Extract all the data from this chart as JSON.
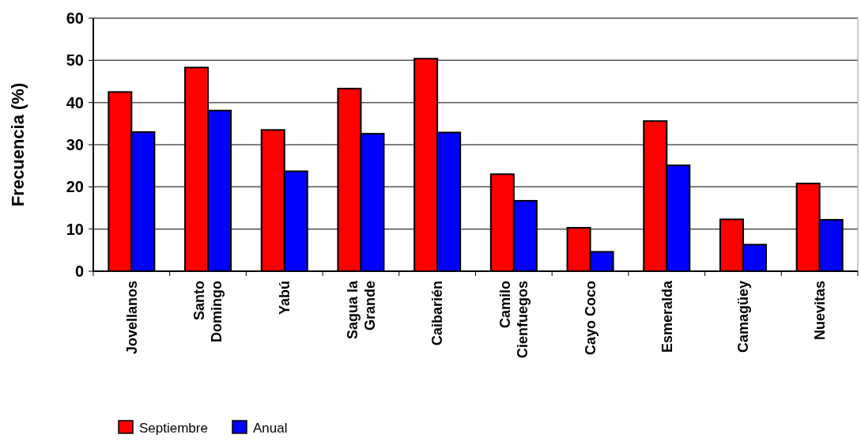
{
  "chart_data": {
    "type": "bar",
    "ylabel": "Frecuencia (%)",
    "categories": [
      "Jovellanos",
      "Santo Domingo",
      "Yabú",
      "Sagua la Grande",
      "Caibarién",
      "Camilo Cienfuegos",
      "Cayo Coco",
      "Esmeralda",
      "Camagüey",
      "Nuevitas"
    ],
    "series": [
      {
        "name": "Septiembre",
        "color": "#ff0000",
        "values": [
          42.5,
          48.3,
          33.5,
          43.3,
          50.4,
          23.0,
          10.3,
          35.6,
          12.3,
          20.8
        ]
      },
      {
        "name": "Anual",
        "color": "#0000ff",
        "values": [
          33.0,
          38.1,
          23.7,
          32.6,
          32.9,
          16.7,
          4.6,
          25.1,
          6.3,
          12.2
        ]
      }
    ],
    "ylim": [
      0,
      60
    ],
    "yticks": [
      0,
      10,
      20,
      30,
      40,
      50,
      60
    ],
    "grid": "y",
    "legend": "bottom left"
  }
}
